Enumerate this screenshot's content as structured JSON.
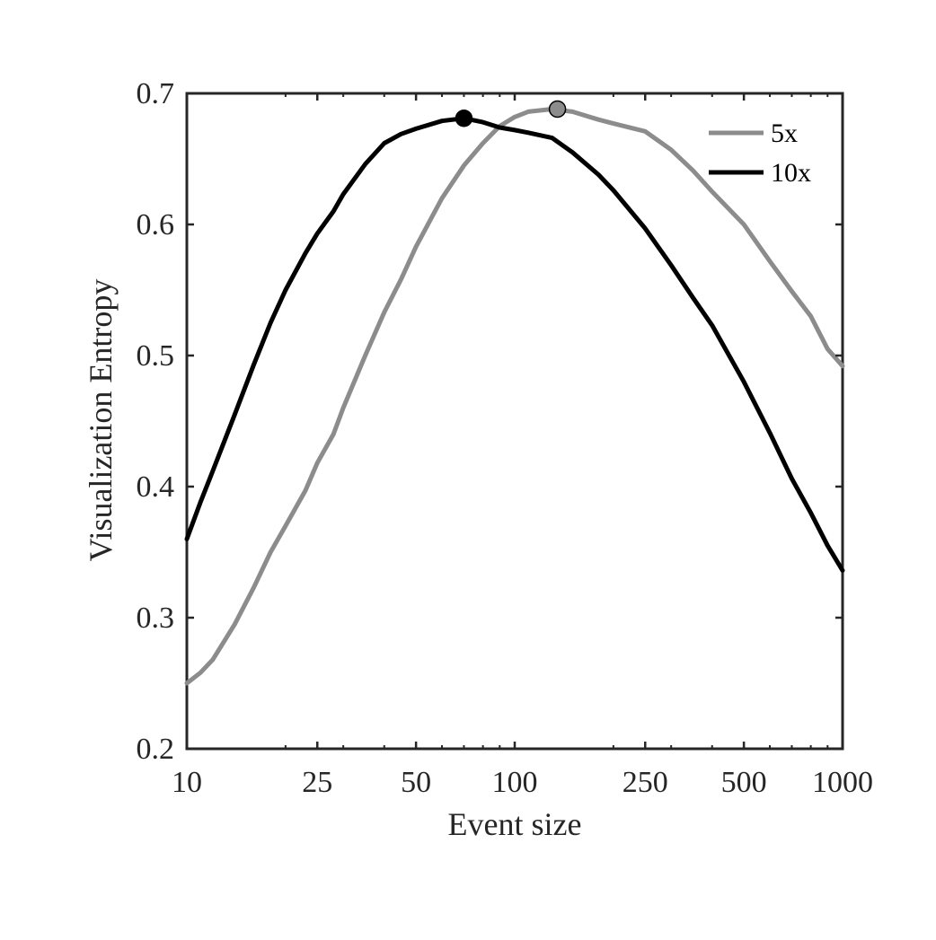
{
  "chart_data": {
    "type": "line",
    "title": "",
    "xlabel": "Event size",
    "ylabel": "Visualization Entropy",
    "xscale": "log",
    "xlim": [
      10,
      1000
    ],
    "ylim": [
      0.2,
      0.7
    ],
    "xticks": [
      10,
      25,
      50,
      100,
      250,
      500,
      1000
    ],
    "xtick_labels": [
      "10",
      "25",
      "50",
      "100",
      "250",
      "500",
      "1000"
    ],
    "yticks": [
      0.2,
      0.3,
      0.4,
      0.5,
      0.6,
      0.7
    ],
    "ytick_labels": [
      "0.2",
      "0.3",
      "0.4",
      "0.5",
      "0.6",
      "0.7"
    ],
    "grid": false,
    "legend_position": "top-right",
    "series": [
      {
        "name": "5x",
        "color": "#8c8c8c",
        "x": [
          10,
          11,
          12,
          14,
          16,
          18,
          20,
          23,
          25,
          28,
          30,
          35,
          40,
          45,
          50,
          60,
          70,
          80,
          90,
          100,
          110,
          130,
          150,
          180,
          200,
          250,
          300,
          350,
          400,
          500,
          600,
          700,
          800,
          900,
          1000
        ],
        "y": [
          0.25,
          0.258,
          0.268,
          0.295,
          0.323,
          0.35,
          0.37,
          0.397,
          0.418,
          0.44,
          0.46,
          0.5,
          0.533,
          0.558,
          0.583,
          0.62,
          0.645,
          0.662,
          0.675,
          0.682,
          0.686,
          0.688,
          0.686,
          0.68,
          0.677,
          0.671,
          0.657,
          0.641,
          0.625,
          0.6,
          0.572,
          0.549,
          0.53,
          0.505,
          0.492
        ]
      },
      {
        "name": "10x",
        "color": "#000000",
        "x": [
          10,
          11,
          12,
          14,
          16,
          18,
          20,
          23,
          25,
          28,
          30,
          35,
          40,
          45,
          50,
          60,
          70,
          80,
          90,
          100,
          110,
          130,
          150,
          180,
          200,
          250,
          300,
          350,
          400,
          500,
          600,
          700,
          800,
          900,
          1000
        ],
        "y": [
          0.36,
          0.388,
          0.412,
          0.455,
          0.493,
          0.525,
          0.55,
          0.578,
          0.593,
          0.61,
          0.623,
          0.646,
          0.662,
          0.669,
          0.673,
          0.679,
          0.681,
          0.678,
          0.674,
          0.672,
          0.67,
          0.666,
          0.655,
          0.638,
          0.626,
          0.597,
          0.569,
          0.544,
          0.523,
          0.48,
          0.441,
          0.406,
          0.38,
          0.355,
          0.336
        ]
      }
    ],
    "markers": [
      {
        "series": "10x",
        "x": 70,
        "y": 0.681,
        "color": "#000000"
      },
      {
        "series": "5x",
        "x": 135,
        "y": 0.688,
        "color": "#8c8c8c"
      }
    ]
  }
}
